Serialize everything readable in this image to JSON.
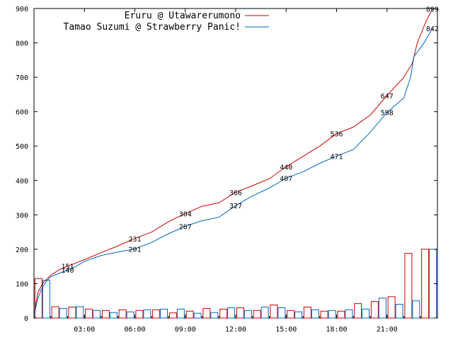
{
  "chart_data": {
    "type": "line",
    "title": "",
    "xlabel": "",
    "ylabel": "",
    "xlim": [
      0,
      24
    ],
    "ylim": [
      0,
      900
    ],
    "yticks": [
      0,
      100,
      200,
      300,
      400,
      500,
      600,
      700,
      800,
      900
    ],
    "xticks": [
      {
        "label": "03:00",
        "value": 3
      },
      {
        "label": "06:00",
        "value": 6
      },
      {
        "label": "09:00",
        "value": 9
      },
      {
        "label": "12:00",
        "value": 12
      },
      {
        "label": "15:00",
        "value": 15
      },
      {
        "label": "18:00",
        "value": 18
      },
      {
        "label": "21:00",
        "value": 21
      }
    ],
    "legend_position": "top-left",
    "series": [
      {
        "name": "Eruru @ Utawarerumono",
        "color": "#cc0000",
        "points": [
          [
            0,
            0
          ],
          [
            0.1,
            40
          ],
          [
            0.25,
            75
          ],
          [
            0.5,
            100
          ],
          [
            0.8,
            115
          ],
          [
            1,
            125
          ],
          [
            1.5,
            140
          ],
          [
            2,
            151
          ],
          [
            2.5,
            160
          ],
          [
            3,
            170
          ],
          [
            4,
            190
          ],
          [
            5,
            210
          ],
          [
            6,
            231
          ],
          [
            7,
            250
          ],
          [
            8,
            280
          ],
          [
            9,
            304
          ],
          [
            10,
            325
          ],
          [
            11,
            335
          ],
          [
            12,
            366
          ],
          [
            13,
            385
          ],
          [
            14,
            405
          ],
          [
            15,
            440
          ],
          [
            16,
            470
          ],
          [
            17,
            500
          ],
          [
            18,
            536
          ],
          [
            19,
            555
          ],
          [
            20,
            590
          ],
          [
            21,
            647
          ],
          [
            22,
            700
          ],
          [
            22.5,
            740
          ],
          [
            22.8,
            800
          ],
          [
            23.3,
            860
          ],
          [
            23.7,
            899
          ]
        ],
        "labels": [
          {
            "x": 2,
            "y": 151
          },
          {
            "x": 6,
            "y": 231
          },
          {
            "x": 9,
            "y": 304
          },
          {
            "x": 12,
            "y": 366
          },
          {
            "x": 15,
            "y": 440
          },
          {
            "x": 18,
            "y": 536
          },
          {
            "x": 21,
            "y": 647
          },
          {
            "x": 23.7,
            "y": 899
          }
        ]
      },
      {
        "name": "Tamao Suzumi @ Strawberry Panic!",
        "color": "#0066cc",
        "points": [
          [
            0,
            0
          ],
          [
            0.1,
            30
          ],
          [
            0.25,
            60
          ],
          [
            0.5,
            90
          ],
          [
            0.8,
            110
          ],
          [
            1,
            120
          ],
          [
            1.5,
            130
          ],
          [
            2,
            140
          ],
          [
            2.5,
            150
          ],
          [
            3,
            165
          ],
          [
            4,
            182
          ],
          [
            5,
            192
          ],
          [
            6,
            201
          ],
          [
            7,
            220
          ],
          [
            8,
            245
          ],
          [
            9,
            267
          ],
          [
            10,
            283
          ],
          [
            11,
            293
          ],
          [
            12,
            327
          ],
          [
            13,
            355
          ],
          [
            14,
            378
          ],
          [
            15,
            407
          ],
          [
            16,
            425
          ],
          [
            17,
            450
          ],
          [
            18,
            471
          ],
          [
            19,
            490
          ],
          [
            20,
            540
          ],
          [
            21,
            598
          ],
          [
            22,
            640
          ],
          [
            22.4,
            700
          ],
          [
            22.6,
            760
          ],
          [
            23.2,
            800
          ],
          [
            23.7,
            842
          ]
        ],
        "labels": [
          {
            "x": 2,
            "y": 140
          },
          {
            "x": 6,
            "y": 201
          },
          {
            "x": 9,
            "y": 267
          },
          {
            "x": 12,
            "y": 327
          },
          {
            "x": 15,
            "y": 407
          },
          {
            "x": 18,
            "y": 471
          },
          {
            "x": 21,
            "y": 598
          },
          {
            "x": 23.7,
            "y": 842
          }
        ]
      }
    ],
    "bars": {
      "series_colors": [
        "#cc0000",
        "#0066cc"
      ],
      "hours": [
        0.5,
        1.5,
        2.5,
        3.5,
        4.5,
        5.5,
        6.5,
        7.5,
        8.5,
        9.5,
        10.5,
        11.5,
        12.5,
        13.5,
        14.5,
        15.5,
        16.5,
        17.5,
        18.5,
        19.5,
        20.5,
        21.5,
        22.5,
        23.5
      ],
      "values": [
        [
          115,
          33,
          32,
          26,
          22,
          24,
          22,
          24,
          15,
          20,
          28,
          26,
          30,
          22,
          38,
          22,
          32,
          20,
          20,
          42,
          48,
          62,
          188,
          200
        ],
        [
          110,
          28,
          33,
          22,
          16,
          18,
          24,
          26,
          26,
          14,
          16,
          30,
          22,
          32,
          30,
          18,
          24,
          22,
          24,
          26,
          58,
          40,
          50,
          200
        ]
      ]
    }
  }
}
